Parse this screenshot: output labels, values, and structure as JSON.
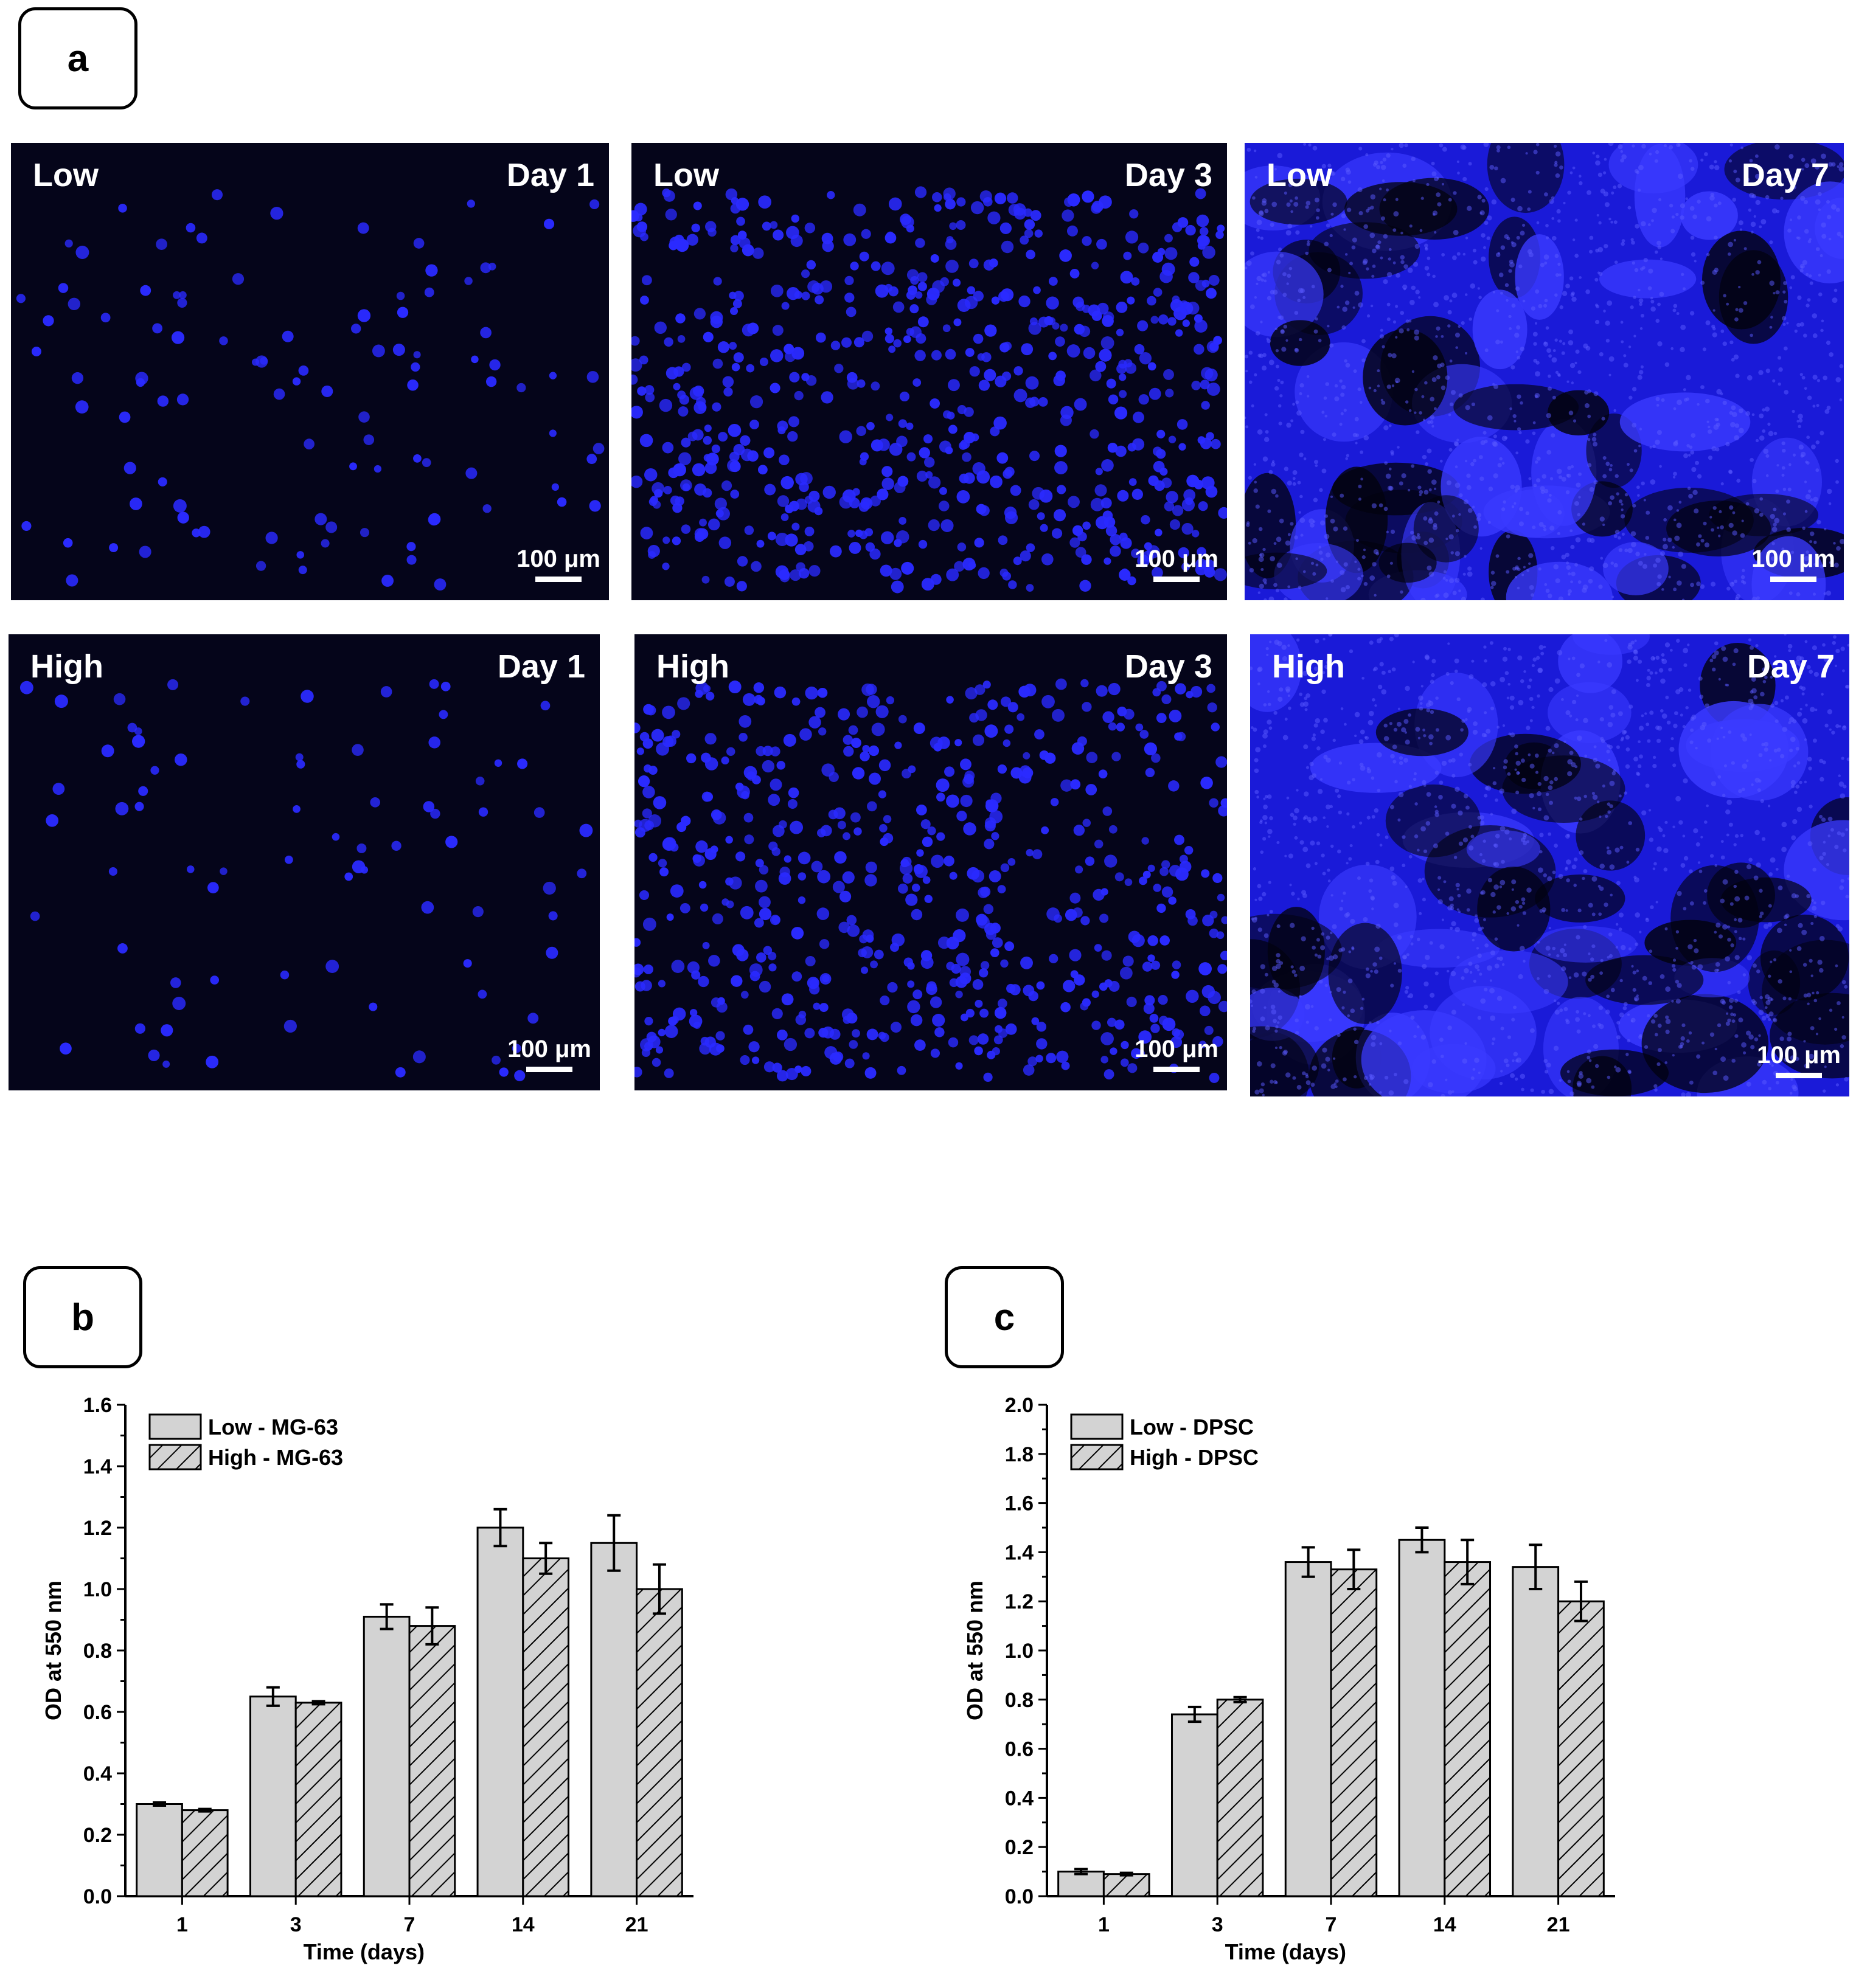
{
  "panel_labels": {
    "a": "a",
    "b": "b",
    "c": "c"
  },
  "micrographs": {
    "scale_bar_label": "100 μm",
    "rows": [
      {
        "condition": "Low",
        "panels": [
          {
            "day": "Day 1",
            "cell_density": 0.08
          },
          {
            "day": "Day 3",
            "cell_density": 0.5
          },
          {
            "day": "Day 7",
            "cell_density": 1.0
          }
        ]
      },
      {
        "condition": "High",
        "panels": [
          {
            "day": "Day 1",
            "cell_density": 0.06
          },
          {
            "day": "Day 3",
            "cell_density": 0.45
          },
          {
            "day": "Day 7",
            "cell_density": 1.0
          }
        ]
      }
    ],
    "colors": {
      "background": "#05051a",
      "stain": "#2a2aff"
    }
  },
  "chart_data": [
    {
      "type": "bar",
      "categories": [
        "1",
        "3",
        "7",
        "14",
        "21"
      ],
      "series": [
        {
          "name": "Low - MG-63",
          "values": [
            0.3,
            0.65,
            0.91,
            1.2,
            1.15
          ],
          "errors": [
            0.005,
            0.03,
            0.04,
            0.06,
            0.09
          ],
          "pattern": "solid"
        },
        {
          "name": "High - MG-63",
          "values": [
            0.28,
            0.63,
            0.88,
            1.1,
            1.0
          ],
          "errors": [
            0.004,
            0.005,
            0.06,
            0.05,
            0.08
          ],
          "pattern": "hatched"
        }
      ],
      "xlabel": "Time (days)",
      "ylabel": "OD at 550 nm",
      "ylim": [
        0,
        1.6
      ],
      "yticks": [
        "0.0",
        "0.2",
        "0.4",
        "0.6",
        "0.8",
        "1.0",
        "1.2",
        "1.4",
        "1.6"
      ],
      "legend_position": "top-left",
      "colors": {
        "bar_fill": "#d3d3d3",
        "stroke": "#000000"
      }
    },
    {
      "type": "bar",
      "categories": [
        "1",
        "3",
        "7",
        "14",
        "21"
      ],
      "series": [
        {
          "name": "Low - DPSC",
          "values": [
            0.1,
            0.74,
            1.36,
            1.45,
            1.34
          ],
          "errors": [
            0.01,
            0.03,
            0.06,
            0.05,
            0.09
          ],
          "pattern": "solid"
        },
        {
          "name": "High - DPSC",
          "values": [
            0.09,
            0.8,
            1.33,
            1.36,
            1.2
          ],
          "errors": [
            0.005,
            0.01,
            0.08,
            0.09,
            0.08
          ],
          "pattern": "hatched"
        }
      ],
      "xlabel": "Time (days)",
      "ylabel": "OD at 550 nm",
      "ylim": [
        0,
        2.0
      ],
      "yticks": [
        "0.0",
        "0.2",
        "0.4",
        "0.6",
        "0.8",
        "1.0",
        "1.2",
        "1.4",
        "1.6",
        "1.8",
        "2.0"
      ],
      "legend_position": "top-left",
      "colors": {
        "bar_fill": "#d3d3d3",
        "stroke": "#000000"
      }
    }
  ]
}
